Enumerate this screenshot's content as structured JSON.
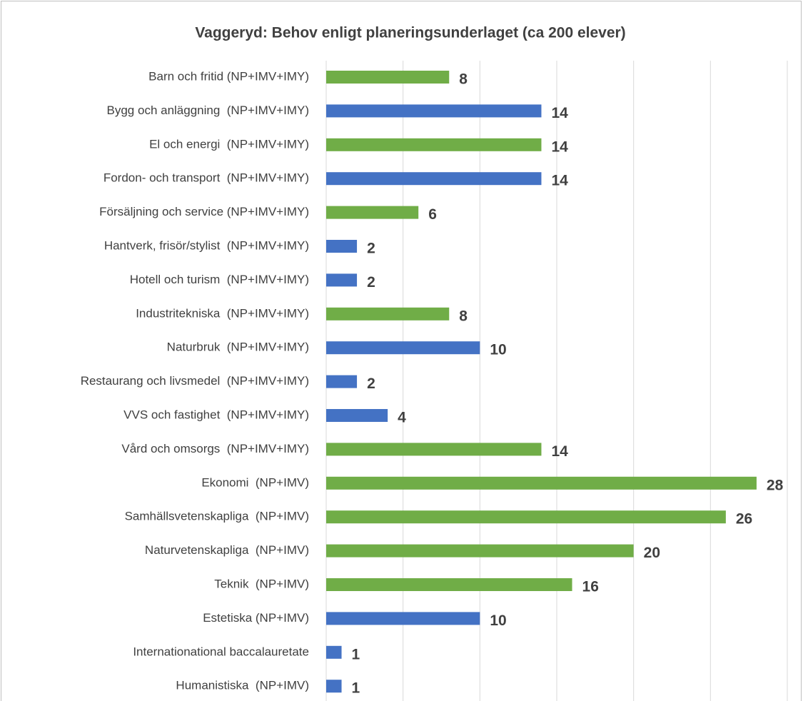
{
  "chart_data": {
    "type": "bar",
    "orientation": "horizontal",
    "title": "Vaggeryd: Behov enligt planeringsunderlaget (ca 200 elever)",
    "categories": [
      "Barn och fritid (NP+IMV+IMY)",
      "Bygg och anläggning  (NP+IMV+IMY)",
      "El och energi  (NP+IMV+IMY)",
      "Fordon- och transport  (NP+IMV+IMY)",
      "Försäljning och service (NP+IMV+IMY)",
      "Hantverk, frisör/stylist  (NP+IMV+IMY)",
      "Hotell och turism  (NP+IMV+IMY)",
      "Industritekniska  (NP+IMV+IMY)",
      "Naturbruk  (NP+IMV+IMY)",
      "Restaurang och livsmedel  (NP+IMV+IMY)",
      "VVS och fastighet  (NP+IMV+IMY)",
      "Vård och omsorgs  (NP+IMV+IMY)",
      "Ekonomi  (NP+IMV)",
      "Samhällsvetenskapliga  (NP+IMV)",
      "Naturvetenskapliga  (NP+IMV)",
      "Teknik  (NP+IMV)",
      "Estetiska (NP+IMV)",
      "Internationational baccalauretate",
      "Humanistiska  (NP+IMV)"
    ],
    "values": [
      8,
      14,
      14,
      14,
      6,
      2,
      2,
      8,
      10,
      2,
      4,
      14,
      28,
      26,
      20,
      16,
      10,
      1,
      1
    ],
    "colors": [
      "#70ad47",
      "#4472c4",
      "#70ad47",
      "#4472c4",
      "#70ad47",
      "#4472c4",
      "#4472c4",
      "#70ad47",
      "#4472c4",
      "#4472c4",
      "#4472c4",
      "#70ad47",
      "#70ad47",
      "#70ad47",
      "#70ad47",
      "#70ad47",
      "#4472c4",
      "#4472c4",
      "#4472c4"
    ],
    "xlim": [
      0,
      30
    ],
    "xticks": [
      0,
      5,
      10,
      15,
      20,
      25,
      30
    ],
    "grid": true
  }
}
